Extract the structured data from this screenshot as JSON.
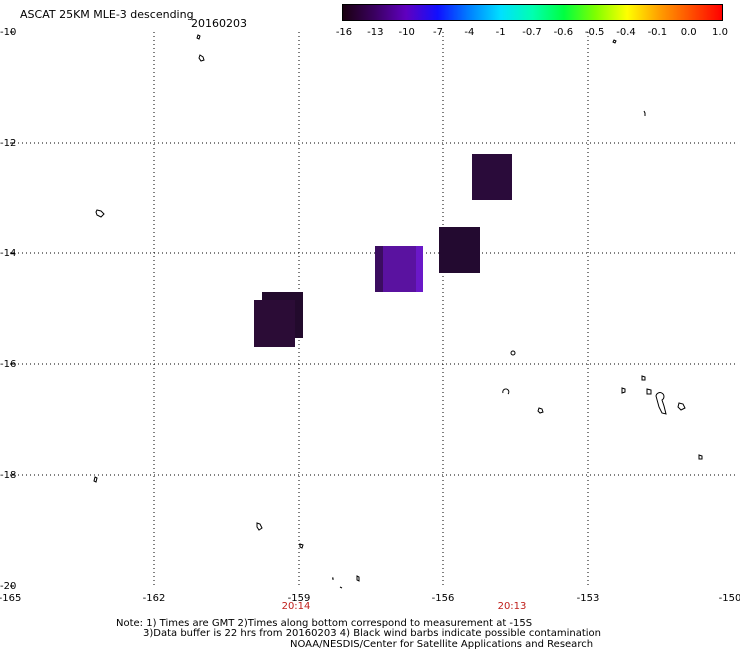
{
  "header": {
    "title": "ASCAT 25KM MLE-3 descending",
    "date": "20160203"
  },
  "colorbar": {
    "ticks": [
      "-16",
      "-13",
      "-10",
      "-7",
      "-4",
      "-1",
      "-0.7",
      "-0.6",
      "-0.5",
      "-0.4",
      "-0.1",
      "0.0",
      "1.0"
    ],
    "colors": [
      "#1a0010",
      "#3a0060",
      "#6000c0",
      "#1010ff",
      "#0080ff",
      "#00e0ff",
      "#00ffb0",
      "#00ff40",
      "#80ff00",
      "#ffff00",
      "#ffa000",
      "#ff5000",
      "#ff0000"
    ]
  },
  "axes": {
    "lat_labels": [
      "-10",
      "-12",
      "-14",
      "-16",
      "-18",
      "-20"
    ],
    "lon_labels": [
      "-165",
      "-162",
      "-159",
      "-156",
      "-153",
      "-150"
    ],
    "time_labels": [
      "20:14",
      "20:13"
    ]
  },
  "notes": {
    "line1": "Note: 1) Times are GMT 2)Times along bottom correspond to measurement at -15S",
    "line2": "3)Data buffer is 22 hrs from 20160203 4) Black wind barbs indicate possible contamination",
    "line3": "NOAA/NESDIS/Center for Satellite Applications and Research"
  }
}
